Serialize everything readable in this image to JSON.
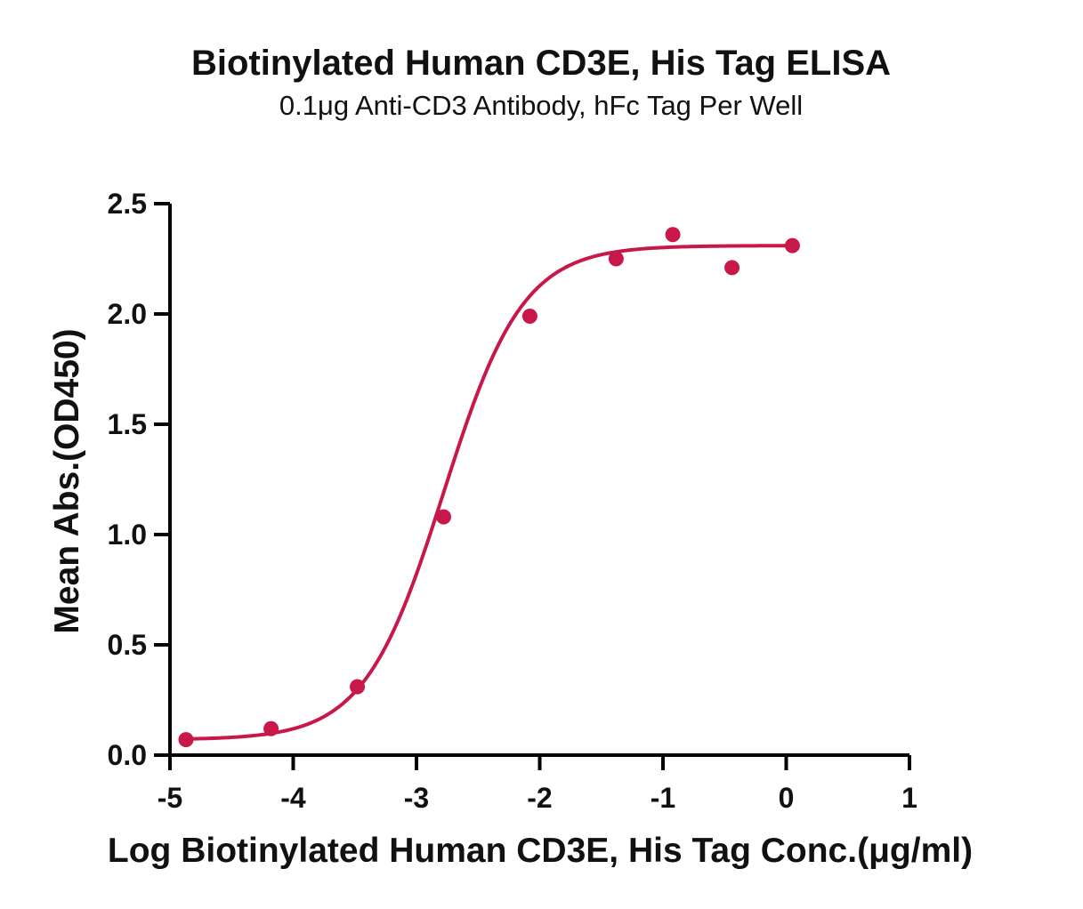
{
  "colors": {
    "series": "#c8184a",
    "axis": "#000000",
    "text": "#111111"
  },
  "chart_data": {
    "type": "scatter",
    "title": "Biotinylated Human CD3E, His Tag ELISA",
    "subtitle": "0.1μg Anti-CD3 Antibody, hFc Tag Per Well",
    "xlabel": "Log Biotinylated Human CD3E, His Tag Conc.(μg/ml)",
    "ylabel": "Mean Abs.(OD450)",
    "xlim": [
      -5,
      1
    ],
    "ylim": [
      0,
      2.5
    ],
    "x_ticks": [
      -5,
      -4,
      -3,
      -2,
      -1,
      0,
      1
    ],
    "x_tick_labels": [
      "-5",
      "-4",
      "-3",
      "-2",
      "-1",
      "0",
      "1"
    ],
    "y_ticks": [
      0,
      0.5,
      1.0,
      1.5,
      2.0,
      2.5
    ],
    "y_tick_labels": [
      "0.0",
      "0.5",
      "1.0",
      "1.5",
      "2.0",
      "2.5"
    ],
    "grid": false,
    "legend": "none",
    "series": [
      {
        "x": [
          -4.87,
          -4.18,
          -3.48,
          -2.78,
          -2.08,
          -1.38,
          -0.92,
          -0.44,
          0.05
        ],
        "y": [
          0.07,
          0.12,
          0.31,
          1.08,
          1.99,
          2.25,
          2.36,
          2.21,
          2.31
        ]
      }
    ],
    "fit": {
      "model": "4PL",
      "bottom": 0.07,
      "top": 2.31,
      "log_ec50": -2.78,
      "hill_slope": 1.35,
      "x_range": [
        -4.87,
        0.05
      ]
    }
  }
}
